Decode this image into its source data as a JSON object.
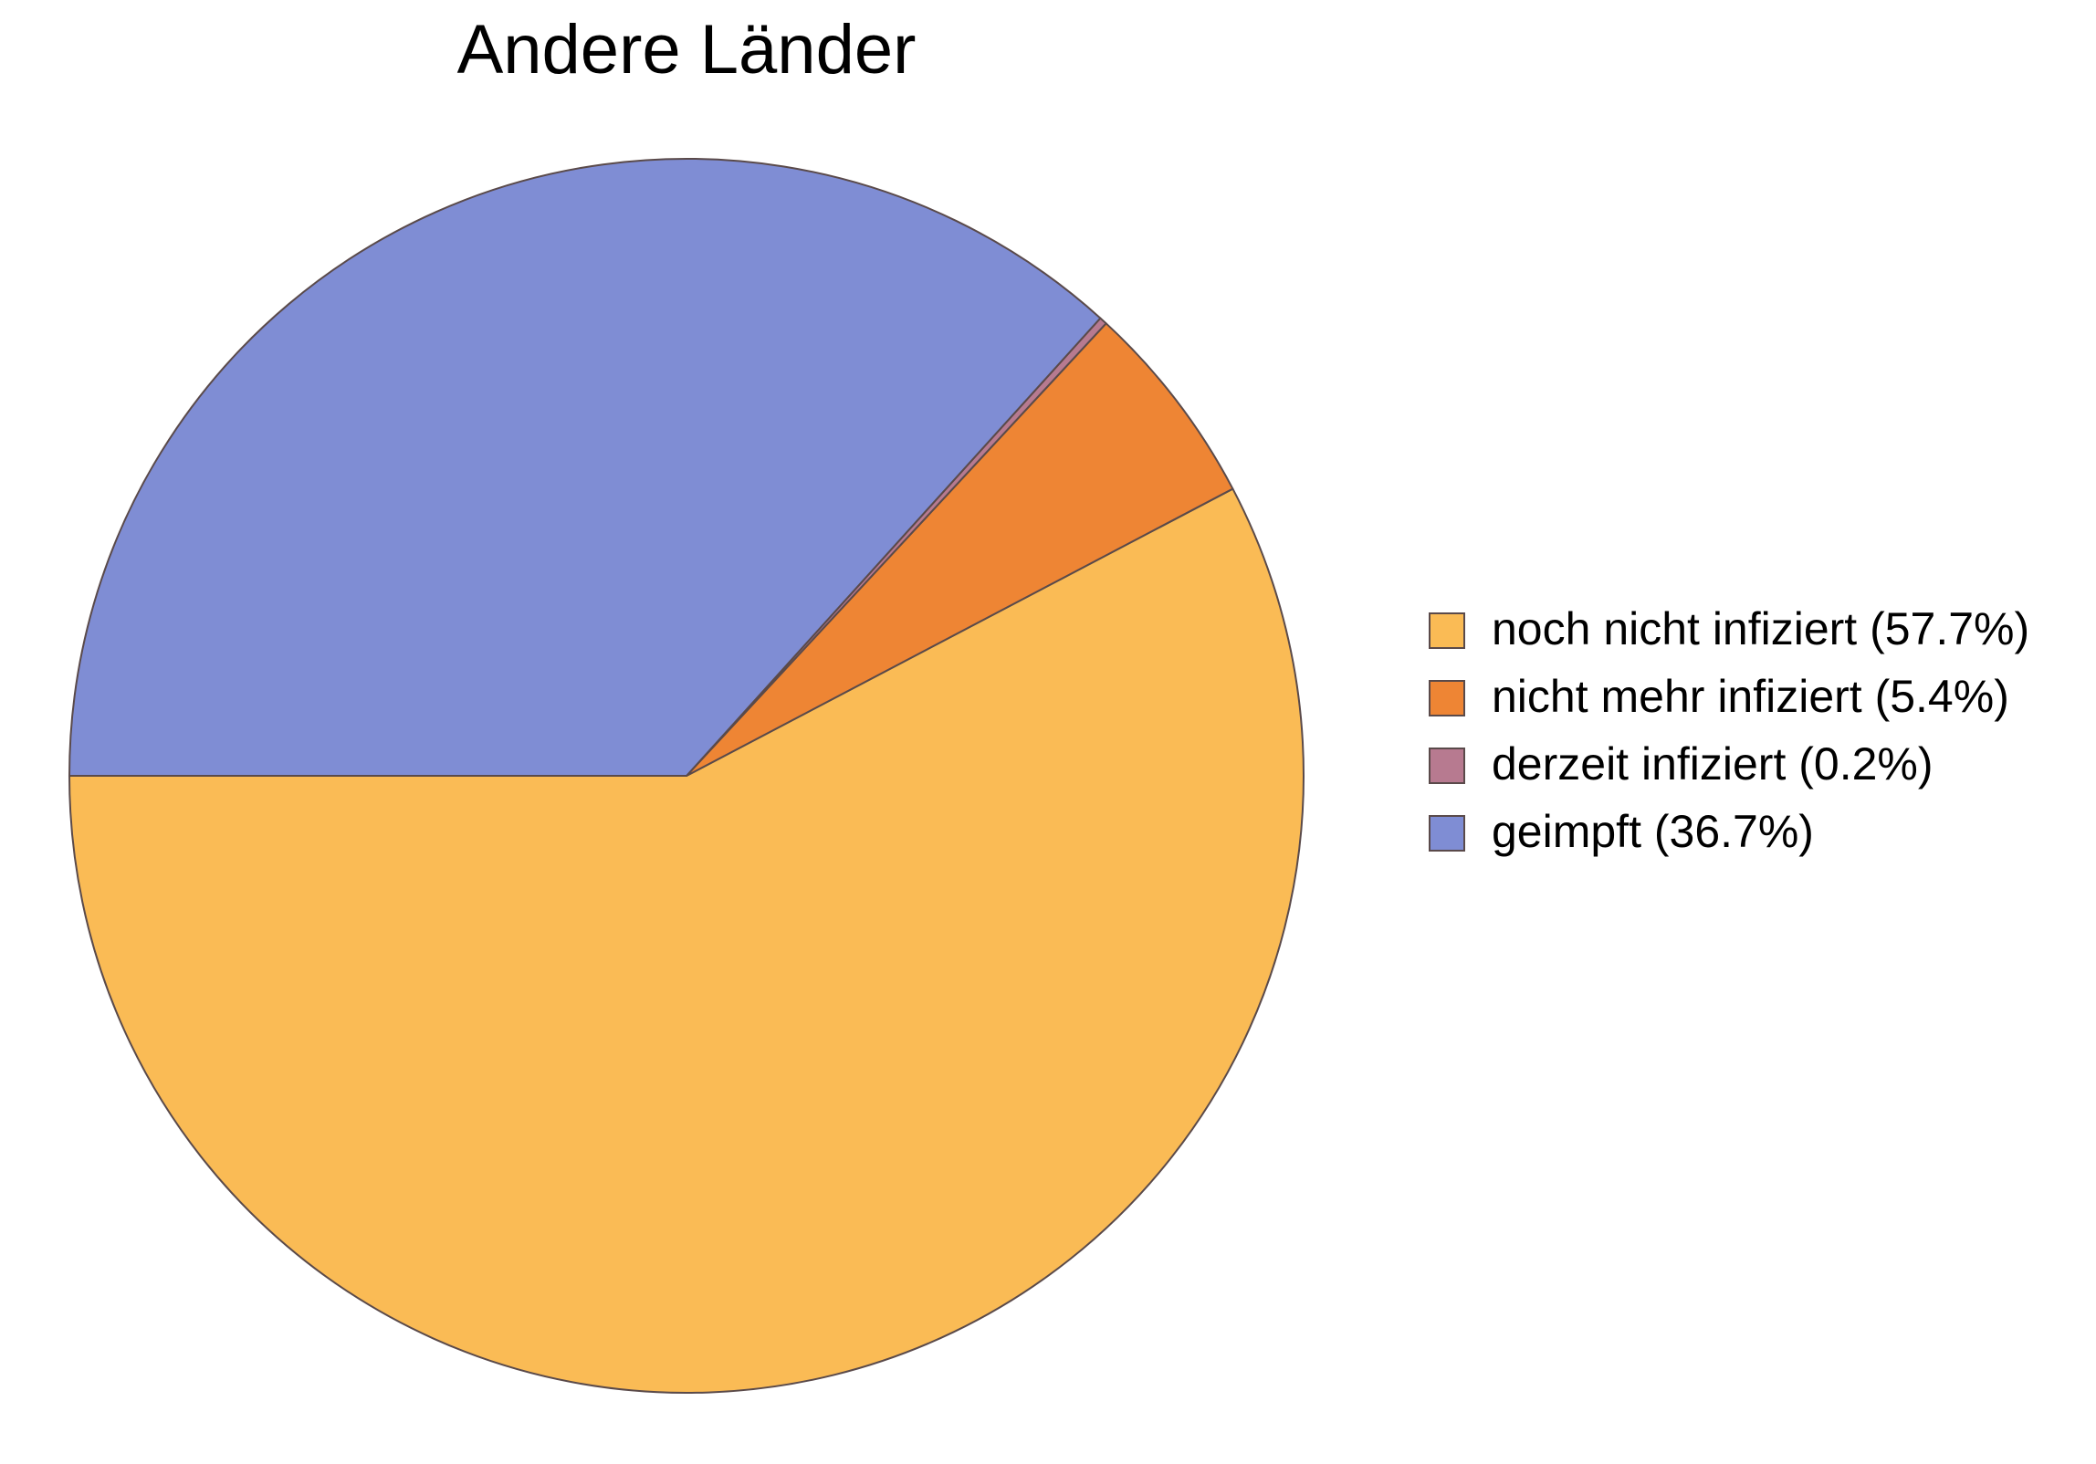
{
  "chart_data": {
    "type": "pie",
    "title": "Andere Länder",
    "start_direction": "left",
    "rotation": "counterclockwise",
    "legend_position": "right",
    "slices": [
      {
        "label": "noch nicht infiziert (57.7%)",
        "value": 57.7,
        "color": "#fabb55"
      },
      {
        "label": "nicht mehr infiziert (5.4%)",
        "value": 5.4,
        "color": "#ee8534"
      },
      {
        "label": "derzeit infiziert (0.2%)",
        "value": 0.2,
        "color": "#b77a90"
      },
      {
        "label": "geimpft (36.7%)",
        "value": 36.7,
        "color": "#7f8dd4"
      }
    ]
  }
}
